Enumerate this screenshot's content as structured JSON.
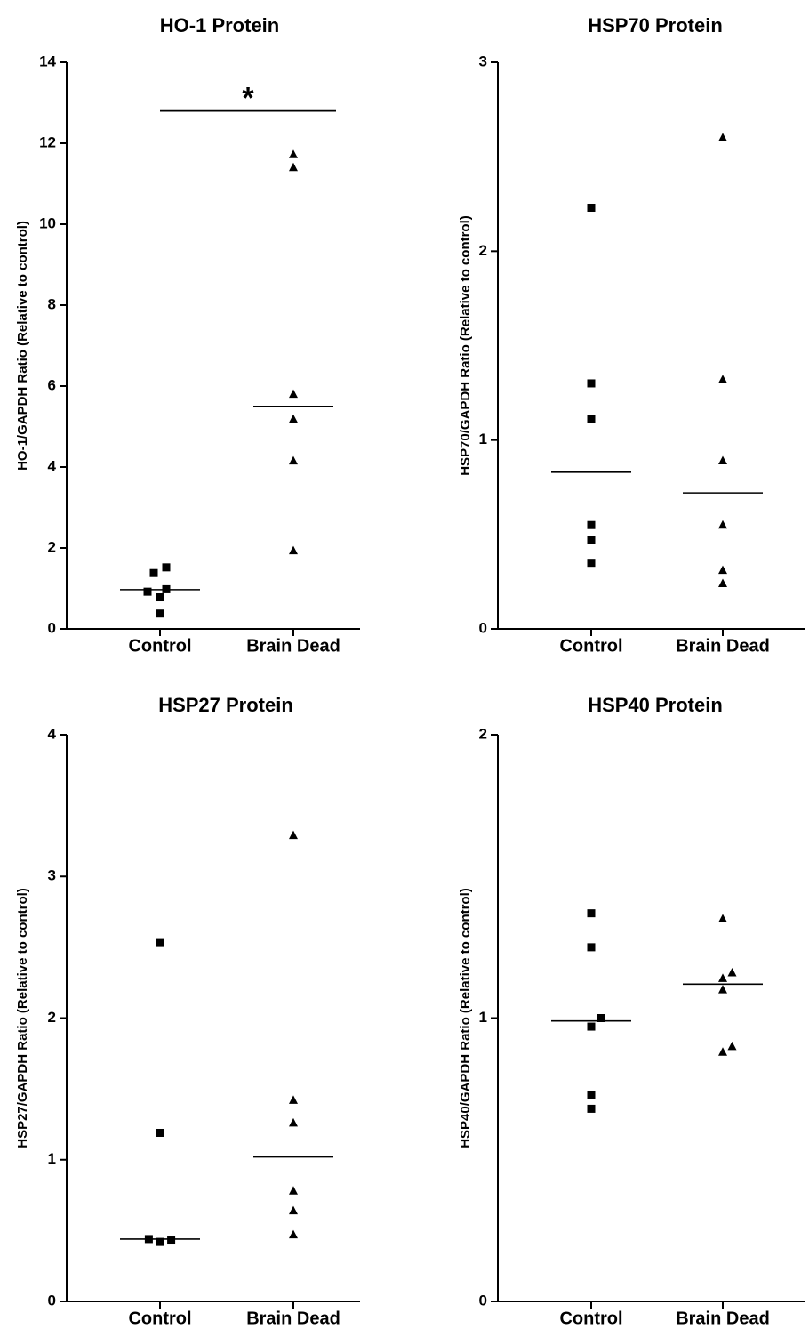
{
  "chart_data": [
    {
      "type": "scatter",
      "title": "HO-1 Protein",
      "ylabel": "HO-1/GAPDH Ratio (Relative to control)",
      "categories": [
        "Control",
        "Brain Dead"
      ],
      "ylim": [
        0,
        14
      ],
      "yticks": [
        "0",
        "2",
        "4",
        "6",
        "8",
        "10",
        "12",
        "14"
      ],
      "series": [
        {
          "marker": "square",
          "points": [
            {
              "x": -0.1,
              "y": 1.38
            },
            {
              "x": 0.1,
              "y": 1.52
            },
            {
              "x": -0.2,
              "y": 0.92
            },
            {
              "x": 0.1,
              "y": 0.98
            },
            {
              "x": 0.0,
              "y": 0.78
            },
            {
              "x": 0.0,
              "y": 0.38
            }
          ],
          "mean": 0.97
        },
        {
          "marker": "triangle",
          "points": [
            {
              "x": 0.0,
              "y": 11.72
            },
            {
              "x": 0.0,
              "y": 11.4
            },
            {
              "x": 0.0,
              "y": 5.8
            },
            {
              "x": 0.0,
              "y": 5.18
            },
            {
              "x": 0.0,
              "y": 4.15
            },
            {
              "x": 0.0,
              "y": 1.93
            }
          ],
          "mean": 5.5
        }
      ],
      "annotation": "*",
      "annotation_y": 12.8,
      "grid": false
    },
    {
      "type": "scatter",
      "title": "HSP70 Protein",
      "ylabel": "HSP70/GAPDH Ratio (Relative to control)",
      "categories": [
        "Control",
        "Brain Dead"
      ],
      "ylim": [
        0,
        3
      ],
      "yticks": [
        "0",
        "1",
        "2",
        "3"
      ],
      "series": [
        {
          "marker": "square",
          "points": [
            {
              "x": 0.0,
              "y": 2.23
            },
            {
              "x": 0.0,
              "y": 1.3
            },
            {
              "x": 0.0,
              "y": 1.11
            },
            {
              "x": 0.0,
              "y": 0.55
            },
            {
              "x": 0.0,
              "y": 0.47
            },
            {
              "x": 0.0,
              "y": 0.35
            }
          ],
          "mean": 0.83
        },
        {
          "marker": "triangle",
          "points": [
            {
              "x": 0.0,
              "y": 2.6
            },
            {
              "x": 0.0,
              "y": 1.32
            },
            {
              "x": 0.0,
              "y": 0.89
            },
            {
              "x": 0.0,
              "y": 0.55
            },
            {
              "x": 0.0,
              "y": 0.31
            },
            {
              "x": 0.0,
              "y": 0.24
            }
          ],
          "mean": 0.72
        }
      ],
      "grid": false
    },
    {
      "type": "scatter",
      "title": "HSP27 Protein",
      "ylabel": "HSP27/GAPDH Ratio (Relative to control)",
      "categories": [
        "Control",
        "Brain Dead"
      ],
      "ylim": [
        0,
        4
      ],
      "yticks": [
        "0",
        "1",
        "2",
        "3",
        "4"
      ],
      "series": [
        {
          "marker": "square",
          "points": [
            {
              "x": 0.0,
              "y": 2.53
            },
            {
              "x": 0.0,
              "y": 1.19
            },
            {
              "x": -0.18,
              "y": 0.44
            },
            {
              "x": 0.0,
              "y": 0.42
            },
            {
              "x": 0.18,
              "y": 0.43
            }
          ],
          "mean": 0.44
        },
        {
          "marker": "triangle",
          "points": [
            {
              "x": 0.0,
              "y": 3.29
            },
            {
              "x": 0.0,
              "y": 1.42
            },
            {
              "x": 0.0,
              "y": 1.26
            },
            {
              "x": 0.0,
              "y": 0.78
            },
            {
              "x": 0.0,
              "y": 0.64
            },
            {
              "x": 0.0,
              "y": 0.47
            }
          ],
          "mean": 1.02
        }
      ],
      "grid": false
    },
    {
      "type": "scatter",
      "title": "HSP40 Protein",
      "ylabel": "HSP40/GAPDH Ratio (Relative to control)",
      "categories": [
        "Control",
        "Brain Dead"
      ],
      "ylim": [
        0,
        2
      ],
      "yticks": [
        "0",
        "1",
        "2"
      ],
      "series": [
        {
          "marker": "square",
          "points": [
            {
              "x": 0.0,
              "y": 1.37
            },
            {
              "x": 0.0,
              "y": 1.25
            },
            {
              "x": 0.15,
              "y": 1.0
            },
            {
              "x": 0.0,
              "y": 0.97
            },
            {
              "x": 0.0,
              "y": 0.73
            },
            {
              "x": 0.0,
              "y": 0.68
            }
          ],
          "mean": 0.99
        },
        {
          "marker": "triangle",
          "points": [
            {
              "x": 0.0,
              "y": 1.35
            },
            {
              "x": 0.15,
              "y": 1.16
            },
            {
              "x": 0.0,
              "y": 1.14
            },
            {
              "x": 0.0,
              "y": 1.1
            },
            {
              "x": 0.15,
              "y": 0.9
            },
            {
              "x": 0.0,
              "y": 0.88
            }
          ],
          "mean": 1.12
        }
      ],
      "grid": false
    }
  ]
}
